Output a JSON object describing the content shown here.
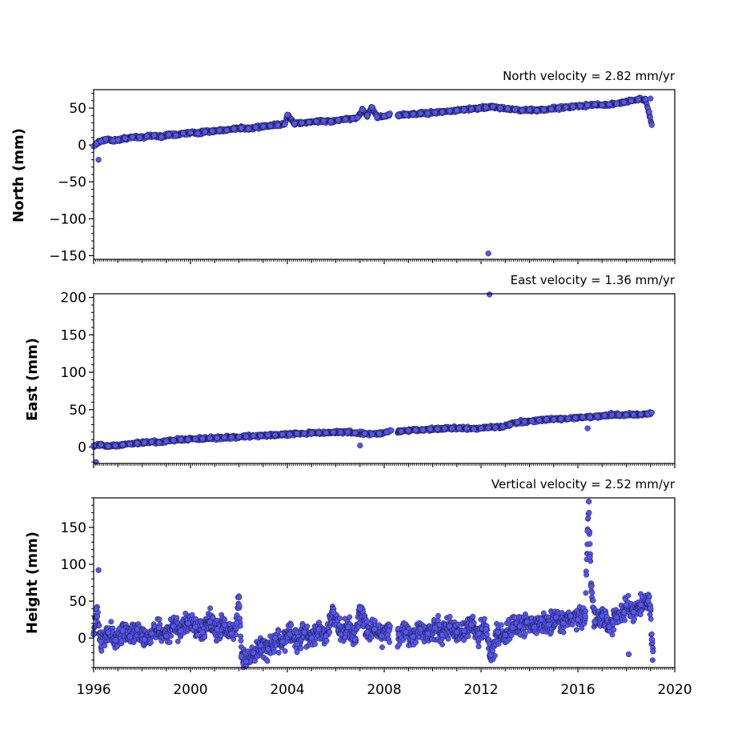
{
  "chart_data": [
    {
      "type": "scatter",
      "title": "North velocity = 2.82 mm/yr",
      "ylabel": "North (mm)",
      "xlabel": "",
      "xlim": [
        1996,
        2020
      ],
      "ylim": [
        -155,
        75
      ],
      "yticks": [
        50,
        0,
        -50,
        -100,
        -150
      ],
      "ytick_labels": [
        "50",
        "0",
        "−50",
        "−100",
        "−150"
      ],
      "series": [
        {
          "values": [
            [
              1996.0,
              -2
            ],
            [
              1996.1,
              2
            ],
            [
              1996.2,
              -20
            ],
            [
              1996.3,
              5
            ],
            [
              1996.5,
              8
            ],
            [
              1996.8,
              6
            ],
            [
              1997.0,
              7
            ],
            [
              1997.3,
              9
            ],
            [
              1997.6,
              11
            ],
            [
              1997.9,
              10
            ],
            [
              1998.2,
              12
            ],
            [
              1998.5,
              13
            ],
            [
              1998.8,
              11
            ],
            [
              1999.1,
              14
            ],
            [
              1999.4,
              13
            ],
            [
              1999.7,
              16
            ],
            [
              2000.0,
              17
            ],
            [
              2000.3,
              16
            ],
            [
              2000.6,
              18
            ],
            [
              2000.9,
              19
            ],
            [
              2001.2,
              20
            ],
            [
              2001.5,
              20
            ],
            [
              2001.8,
              22
            ],
            [
              2002.1,
              23
            ],
            [
              2002.4,
              22
            ],
            [
              2002.7,
              24
            ],
            [
              2003.0,
              25
            ],
            [
              2003.3,
              26
            ],
            [
              2003.6,
              27
            ],
            [
              2003.9,
              28
            ],
            [
              2004.0,
              41
            ],
            [
              2004.3,
              29
            ],
            [
              2004.6,
              30
            ],
            [
              2004.9,
              31
            ],
            [
              2005.2,
              32
            ],
            [
              2005.5,
              33
            ],
            [
              2005.8,
              32
            ],
            [
              2006.1,
              34
            ],
            [
              2006.4,
              35
            ],
            [
              2006.7,
              36
            ],
            [
              2006.9,
              37
            ],
            [
              2007.1,
              48
            ],
            [
              2007.3,
              40
            ],
            [
              2007.5,
              51
            ],
            [
              2007.7,
              38
            ],
            [
              2008.0,
              39
            ],
            [
              2008.2,
              41
            ],
            [
              2008.6,
              40
            ],
            [
              2008.9,
              41
            ],
            [
              2009.2,
              42
            ],
            [
              2009.5,
              43
            ],
            [
              2009.8,
              43
            ],
            [
              2010.1,
              44
            ],
            [
              2010.4,
              45
            ],
            [
              2010.7,
              46
            ],
            [
              2011.0,
              47
            ],
            [
              2011.3,
              48
            ],
            [
              2011.6,
              49
            ],
            [
              2011.9,
              50
            ],
            [
              2012.2,
              51
            ],
            [
              2012.3,
              -147
            ],
            [
              2012.5,
              52
            ],
            [
              2012.8,
              50
            ],
            [
              2013.1,
              49
            ],
            [
              2013.4,
              48
            ],
            [
              2013.7,
              47
            ],
            [
              2014.0,
              48
            ],
            [
              2014.3,
              47
            ],
            [
              2014.6,
              48
            ],
            [
              2014.9,
              49
            ],
            [
              2015.2,
              50
            ],
            [
              2015.5,
              51
            ],
            [
              2015.8,
              52
            ],
            [
              2016.1,
              53
            ],
            [
              2016.4,
              54
            ],
            [
              2016.7,
              55
            ],
            [
              2017.0,
              54
            ],
            [
              2017.3,
              55
            ],
            [
              2017.6,
              56
            ],
            [
              2017.9,
              58
            ],
            [
              2018.2,
              60
            ],
            [
              2018.5,
              62
            ],
            [
              2018.8,
              62
            ],
            [
              2018.95,
              45
            ],
            [
              2019.0,
              63
            ],
            [
              2019.05,
              27
            ]
          ]
        }
      ]
    },
    {
      "type": "scatter",
      "title": "East velocity = 1.36 mm/yr",
      "ylabel": "East (mm)",
      "xlabel": "",
      "xlim": [
        1996,
        2020
      ],
      "ylim": [
        -22,
        205
      ],
      "yticks": [
        200,
        150,
        100,
        50,
        0
      ],
      "ytick_labels": [
        "200",
        "150",
        "100",
        "50",
        "0"
      ],
      "series": [
        {
          "values": [
            [
              1996.0,
              2
            ],
            [
              1996.1,
              -20
            ],
            [
              1996.3,
              3
            ],
            [
              1996.6,
              1
            ],
            [
              1996.9,
              2
            ],
            [
              1997.2,
              3
            ],
            [
              1997.5,
              4
            ],
            [
              1997.8,
              5
            ],
            [
              1998.1,
              6
            ],
            [
              1998.4,
              7
            ],
            [
              1998.7,
              6
            ],
            [
              1999.0,
              8
            ],
            [
              1999.3,
              9
            ],
            [
              1999.6,
              10
            ],
            [
              1999.9,
              10
            ],
            [
              2000.2,
              11
            ],
            [
              2000.5,
              11
            ],
            [
              2000.8,
              12
            ],
            [
              2001.1,
              12
            ],
            [
              2001.4,
              13
            ],
            [
              2001.7,
              13
            ],
            [
              2002.0,
              14
            ],
            [
              2002.3,
              14
            ],
            [
              2002.6,
              15
            ],
            [
              2002.9,
              15
            ],
            [
              2003.2,
              16
            ],
            [
              2003.5,
              16
            ],
            [
              2003.8,
              17
            ],
            [
              2004.1,
              17
            ],
            [
              2004.4,
              18
            ],
            [
              2004.7,
              18
            ],
            [
              2005.0,
              19
            ],
            [
              2005.3,
              19
            ],
            [
              2005.6,
              19
            ],
            [
              2005.9,
              20
            ],
            [
              2006.2,
              20
            ],
            [
              2006.5,
              20
            ],
            [
              2006.8,
              19
            ],
            [
              2007.0,
              2
            ],
            [
              2007.2,
              18
            ],
            [
              2007.5,
              17
            ],
            [
              2007.8,
              18
            ],
            [
              2008.1,
              20
            ],
            [
              2008.3,
              22
            ],
            [
              2008.7,
              21
            ],
            [
              2009.0,
              22
            ],
            [
              2009.3,
              23
            ],
            [
              2009.6,
              23
            ],
            [
              2009.9,
              24
            ],
            [
              2010.2,
              24
            ],
            [
              2010.5,
              25
            ],
            [
              2010.8,
              25
            ],
            [
              2011.1,
              25
            ],
            [
              2011.4,
              25
            ],
            [
              2011.7,
              24
            ],
            [
              2012.0,
              25
            ],
            [
              2012.3,
              26
            ],
            [
              2012.35,
              204
            ],
            [
              2012.6,
              26
            ],
            [
              2012.9,
              27
            ],
            [
              2013.2,
              30
            ],
            [
              2013.5,
              33
            ],
            [
              2013.8,
              34
            ],
            [
              2014.1,
              35
            ],
            [
              2014.4,
              36
            ],
            [
              2014.7,
              37
            ],
            [
              2015.0,
              37
            ],
            [
              2015.3,
              38
            ],
            [
              2015.6,
              38
            ],
            [
              2015.9,
              39
            ],
            [
              2016.2,
              40
            ],
            [
              2016.4,
              25
            ],
            [
              2016.5,
              40
            ],
            [
              2016.8,
              41
            ],
            [
              2017.1,
              42
            ],
            [
              2017.4,
              43
            ],
            [
              2017.7,
              43
            ],
            [
              2018.0,
              43
            ],
            [
              2018.3,
              43
            ],
            [
              2018.6,
              44
            ],
            [
              2018.9,
              44
            ],
            [
              2019.05,
              46
            ]
          ]
        }
      ]
    },
    {
      "type": "scatter",
      "title": "Vertical velocity = 2.52 mm/yr",
      "ylabel": "Height (mm)",
      "xlabel": "",
      "xlim": [
        1996,
        2020
      ],
      "ylim": [
        -40,
        190
      ],
      "yticks": [
        150,
        100,
        50,
        0
      ],
      "ytick_labels": [
        "150",
        "100",
        "50",
        "0"
      ],
      "xticks": [
        1996,
        2000,
        2004,
        2008,
        2012,
        2016,
        2020
      ],
      "xtick_labels": [
        "1996",
        "2000",
        "2004",
        "2008",
        "2012",
        "2016",
        "2020"
      ],
      "series": [
        {
          "values": [
            [
              1996.0,
              5
            ],
            [
              1996.1,
              40
            ],
            [
              1996.2,
              92
            ],
            [
              1996.3,
              -5
            ],
            [
              1996.6,
              8
            ],
            [
              1996.9,
              -3
            ],
            [
              1997.2,
              10
            ],
            [
              1997.5,
              2
            ],
            [
              1997.8,
              12
            ],
            [
              1998.1,
              -2
            ],
            [
              1998.4,
              6
            ],
            [
              1998.7,
              14
            ],
            [
              1999.0,
              3
            ],
            [
              1999.3,
              16
            ],
            [
              1999.6,
              10
            ],
            [
              1999.9,
              20
            ],
            [
              2000.2,
              15
            ],
            [
              2000.5,
              8
            ],
            [
              2000.8,
              22
            ],
            [
              2001.1,
              12
            ],
            [
              2001.4,
              18
            ],
            [
              2001.7,
              6
            ],
            [
              2001.9,
              20
            ],
            [
              2002.0,
              55
            ],
            [
              2002.1,
              -25
            ],
            [
              2002.3,
              -32
            ],
            [
              2002.6,
              -20
            ],
            [
              2002.9,
              -10
            ],
            [
              2003.2,
              -15
            ],
            [
              2003.5,
              0
            ],
            [
              2003.8,
              -5
            ],
            [
              2004.1,
              5
            ],
            [
              2004.4,
              -8
            ],
            [
              2004.7,
              8
            ],
            [
              2005.0,
              0
            ],
            [
              2005.3,
              12
            ],
            [
              2005.6,
              3
            ],
            [
              2005.9,
              35
            ],
            [
              2006.2,
              5
            ],
            [
              2006.5,
              15
            ],
            [
              2006.8,
              -2
            ],
            [
              2007.0,
              40
            ],
            [
              2007.3,
              8
            ],
            [
              2007.6,
              12
            ],
            [
              2007.9,
              3
            ],
            [
              2008.2,
              10
            ],
            [
              2008.6,
              5
            ],
            [
              2008.9,
              8
            ],
            [
              2009.2,
              2
            ],
            [
              2009.5,
              12
            ],
            [
              2009.8,
              6
            ],
            [
              2010.1,
              14
            ],
            [
              2010.4,
              4
            ],
            [
              2010.7,
              16
            ],
            [
              2011.0,
              8
            ],
            [
              2011.3,
              10
            ],
            [
              2011.6,
              18
            ],
            [
              2011.9,
              6
            ],
            [
              2012.2,
              12
            ],
            [
              2012.4,
              -23
            ],
            [
              2012.7,
              8
            ],
            [
              2013.0,
              4
            ],
            [
              2013.3,
              14
            ],
            [
              2013.6,
              16
            ],
            [
              2013.9,
              22
            ],
            [
              2014.2,
              15
            ],
            [
              2014.5,
              25
            ],
            [
              2014.8,
              18
            ],
            [
              2015.1,
              28
            ],
            [
              2015.4,
              20
            ],
            [
              2015.7,
              30
            ],
            [
              2016.0,
              25
            ],
            [
              2016.3,
              30
            ],
            [
              2016.4,
              145
            ],
            [
              2016.45,
              185
            ],
            [
              2016.5,
              110
            ],
            [
              2016.55,
              70
            ],
            [
              2016.7,
              22
            ],
            [
              2017.0,
              30
            ],
            [
              2017.3,
              15
            ],
            [
              2017.6,
              28
            ],
            [
              2017.9,
              35
            ],
            [
              2018.0,
              45
            ],
            [
              2018.1,
              -22
            ],
            [
              2018.3,
              35
            ],
            [
              2018.6,
              45
            ],
            [
              2018.9,
              50
            ],
            [
              2019.0,
              40
            ],
            [
              2019.05,
              -2
            ],
            [
              2019.1,
              -18
            ]
          ]
        }
      ]
    }
  ]
}
